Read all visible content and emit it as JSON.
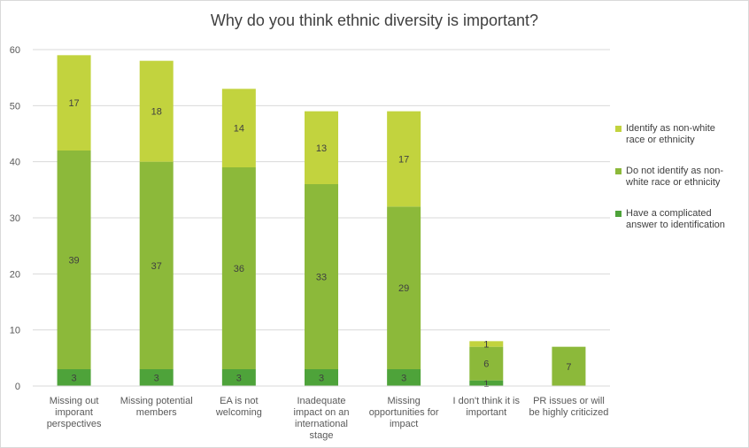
{
  "chart_data": {
    "type": "bar",
    "stacked": true,
    "title": "Why do you think ethnic diversity is important?",
    "xlabel": "",
    "ylabel": "",
    "ylim": [
      0,
      60
    ],
    "yticks": [
      0,
      10,
      20,
      30,
      40,
      50,
      60
    ],
    "grid": true,
    "legend_position": "right",
    "categories": [
      [
        "Missing out",
        "imporant",
        "perspectives"
      ],
      [
        "Missing potential",
        "members"
      ],
      [
        "EA is not",
        "welcoming"
      ],
      [
        "Inadequate",
        "impact on an",
        "international",
        "stage"
      ],
      [
        "Missing",
        "opportunities for",
        "impact"
      ],
      [
        "I don't think it is",
        "important"
      ],
      [
        "PR issues or will",
        "be highly criticized"
      ]
    ],
    "series": [
      {
        "name": "Have a complicated answer to identification",
        "legend_lines": [
          "Have a complicated",
          "answer to identification"
        ],
        "color": "#4ea33a",
        "values": [
          3,
          3,
          3,
          3,
          3,
          1,
          0
        ]
      },
      {
        "name": "Do not identify as non-white race or ethnicity",
        "legend_lines": [
          "Do not identify as non-",
          "white race or ethnicity"
        ],
        "color": "#8cb93a",
        "values": [
          39,
          37,
          36,
          33,
          29,
          6,
          7
        ]
      },
      {
        "name": "Identify as non-white race or ethnicity",
        "legend_lines": [
          "Identify as non-white",
          "race or ethnicity"
        ],
        "color": "#c2d33e",
        "values": [
          17,
          18,
          14,
          13,
          17,
          1,
          0
        ]
      }
    ]
  }
}
